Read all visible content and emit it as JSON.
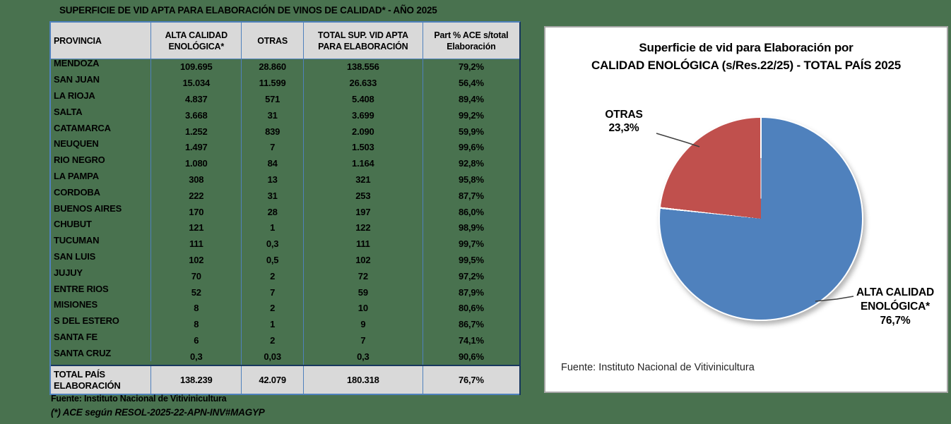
{
  "page": {
    "title": "SUPERFICIE DE VID APTA PARA ELABORACIÓN DE VINOS DE CALIDAD* - AÑO 2025",
    "background_color": "#49724f"
  },
  "table": {
    "headers": {
      "provincia": "PROVINCIA",
      "ace_line1": "ALTA CALIDAD",
      "ace_line2": "ENOLÓGICA*",
      "otras": "OTRAS",
      "total_line1": "TOTAL SUP. VID APTA",
      "total_line2": "PARA  ELABORACIÓN",
      "part_line1": "Part % ACE s/total",
      "part_line2": "Elaboración"
    },
    "rows": [
      {
        "provincia": "MENDOZA",
        "ace": "109.695",
        "otras": "28.860",
        "total": "138.556",
        "part": "79,2%"
      },
      {
        "provincia": "SAN JUAN",
        "ace": "15.034",
        "otras": "11.599",
        "total": "26.633",
        "part": "56,4%"
      },
      {
        "provincia": "LA RIOJA",
        "ace": "4.837",
        "otras": "571",
        "total": "5.408",
        "part": "89,4%"
      },
      {
        "provincia": "SALTA",
        "ace": "3.668",
        "otras": "31",
        "total": "3.699",
        "part": "99,2%"
      },
      {
        "provincia": "CATAMARCA",
        "ace": "1.252",
        "otras": "839",
        "total": "2.090",
        "part": "59,9%"
      },
      {
        "provincia": "NEUQUEN",
        "ace": "1.497",
        "otras": "7",
        "total": "1.503",
        "part": "99,6%"
      },
      {
        "provincia": "RIO NEGRO",
        "ace": "1.080",
        "otras": "84",
        "total": "1.164",
        "part": "92,8%"
      },
      {
        "provincia": "LA PAMPA",
        "ace": "308",
        "otras": "13",
        "total": "321",
        "part": "95,8%"
      },
      {
        "provincia": "CORDOBA",
        "ace": "222",
        "otras": "31",
        "total": "253",
        "part": "87,7%"
      },
      {
        "provincia": "BUENOS AIRES",
        "ace": "170",
        "otras": "28",
        "total": "197",
        "part": "86,0%"
      },
      {
        "provincia": "CHUBUT",
        "ace": "121",
        "otras": "1",
        "total": "122",
        "part": "98,9%"
      },
      {
        "provincia": "TUCUMAN",
        "ace": "111",
        "otras": "0,3",
        "total": "111",
        "part": "99,7%"
      },
      {
        "provincia": "SAN LUIS",
        "ace": "102",
        "otras": "0,5",
        "total": "102",
        "part": "99,5%"
      },
      {
        "provincia": "JUJUY",
        "ace": "70",
        "otras": "2",
        "total": "72",
        "part": "97,2%"
      },
      {
        "provincia": "ENTRE RIOS",
        "ace": "52",
        "otras": "7",
        "total": "59",
        "part": "87,9%"
      },
      {
        "provincia": "MISIONES",
        "ace": "8",
        "otras": "2",
        "total": "10",
        "part": "80,6%"
      },
      {
        "provincia": "S DEL ESTERO",
        "ace": "8",
        "otras": "1",
        "total": "9",
        "part": "86,7%"
      },
      {
        "provincia": "SANTA FE",
        "ace": "6",
        "otras": "2",
        "total": "7",
        "part": "74,1%"
      },
      {
        "provincia": "SANTA CRUZ",
        "ace": "0,3",
        "otras": "0,03",
        "total": "0,3",
        "part": "90,6%"
      }
    ],
    "total_row": {
      "label_line1": "TOTAL PAÍS",
      "label_line2": "ELABORACIÓN",
      "ace": "138.239",
      "otras": "42.079",
      "total": "180.318",
      "part": "76,7%"
    },
    "footnotes": [
      "Fuente: Instituto Nacional de Vitivinicultura",
      "(*) ACE según RESOL-2025-22-APN-INV#MAGYP"
    ]
  },
  "chart": {
    "title_line1": "Superficie de vid para Elaboración por",
    "title_line2": "CALIDAD ENOLÓGICA (s/Res.22/25) - TOTAL PAÍS 2025",
    "label_otras_name": "OTRAS",
    "label_otras_value": "23,3%",
    "label_ace_line1": "ALTA CALIDAD",
    "label_ace_line2": "ENOLÓGICA*",
    "label_ace_value": "76,7%",
    "source": "Fuente: Instituto Nacional de Vitivinicultura"
  },
  "chart_data": {
    "type": "pie",
    "title": "Superficie de vid para Elaboración por CALIDAD ENOLÓGICA (s/Res.22/25) - TOTAL PAÍS 2025",
    "labels": [
      "ALTA CALIDAD ENOLÓGICA*",
      "OTRAS"
    ],
    "values": [
      76.7,
      23.3
    ],
    "colors": [
      "#4F81BD",
      "#C0504D"
    ],
    "start_angle_deg": 0,
    "direction": "clockwise",
    "legend": "off",
    "source": "Fuente: Instituto Nacional de Vitivinicultura"
  }
}
